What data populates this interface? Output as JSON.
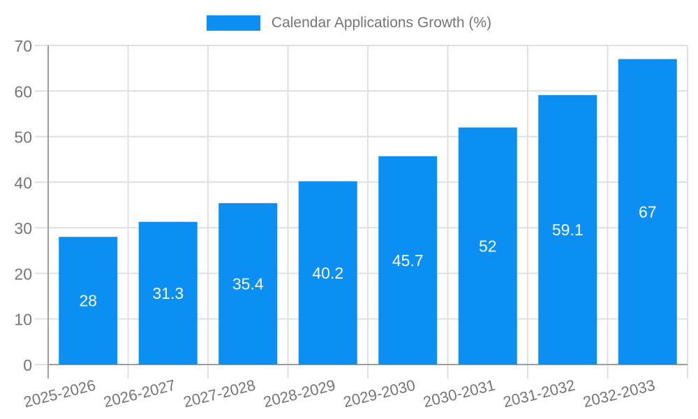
{
  "legend": {
    "label": "Calendar Applications Growth (%)"
  },
  "chart_data": {
    "type": "bar",
    "title": "Calendar Applications Growth (%)",
    "series_name": "Calendar Applications Growth (%)",
    "categories": [
      "2025-2026",
      "2026-2027",
      "2027-2028",
      "2028-2029",
      "2029-2030",
      "2030-2031",
      "2031-2032",
      "2032-2033"
    ],
    "values": [
      28,
      31.3,
      35.4,
      40.2,
      45.7,
      52,
      59.1,
      67
    ],
    "bar_labels": [
      "28",
      "31.3",
      "35.4",
      "40.2",
      "45.7",
      "52",
      "59.1",
      "67"
    ],
    "xlabel": "",
    "ylabel": "",
    "ylim": [
      0,
      70
    ],
    "ytick_interval": 10,
    "yticks": [
      0,
      10,
      20,
      30,
      40,
      50,
      60,
      70
    ],
    "grid": true,
    "legend_position": "top-center",
    "value_label_position": "center",
    "colors": {
      "bar": "#0c8ff2",
      "grid": "#e0e0e0",
      "axis": "#9e9e9e",
      "text": "#757575",
      "bar_label_text": "#ffffff",
      "background": "#ffffff"
    }
  }
}
